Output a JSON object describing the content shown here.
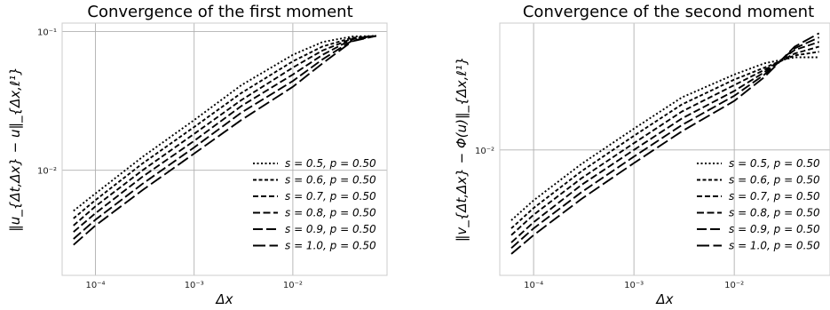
{
  "chart_data": [
    {
      "type": "line",
      "title": "Convergence of the first moment",
      "xlabel": "Δx",
      "ylabel": "‖u_{Δt,Δx} − u‖_{Δx,ℓ¹}",
      "xscale": "log",
      "yscale": "log",
      "xlim": [
        4.6e-05,
        0.09
      ],
      "ylim": [
        0.00175,
        0.115
      ],
      "xticks": [
        {
          "v": 0.0001,
          "label": "10⁻⁴"
        },
        {
          "v": 0.001,
          "label": "10⁻³"
        },
        {
          "v": 0.01,
          "label": "10⁻²"
        }
      ],
      "yticks": [
        {
          "v": 0.01,
          "label": "10⁻²"
        },
        {
          "v": 0.1,
          "label": "10⁻¹"
        }
      ],
      "grid": true,
      "legend_position": "lower-right",
      "x": [
        6e-05,
        0.0001,
        0.0003,
        0.001,
        0.003,
        0.01,
        0.02,
        0.04,
        0.07
      ],
      "series": [
        {
          "name": "s = 0.5, p = 0.50",
          "values": [
            0.0051,
            0.0068,
            0.0125,
            0.023,
            0.041,
            0.068,
            0.084,
            0.092,
            0.093
          ]
        },
        {
          "name": "s = 0.6, p = 0.50",
          "values": [
            0.0045,
            0.0061,
            0.0112,
            0.0205,
            0.036,
            0.061,
            0.078,
            0.09,
            0.093
          ]
        },
        {
          "name": "s = 0.7, p = 0.50",
          "values": [
            0.004,
            0.0055,
            0.01,
            0.0183,
            0.032,
            0.055,
            0.073,
            0.089,
            0.093
          ]
        },
        {
          "name": "s = 0.8, p = 0.50",
          "values": [
            0.0036,
            0.0049,
            0.009,
            0.0163,
            0.029,
            0.049,
            0.068,
            0.088,
            0.093
          ]
        },
        {
          "name": "s = 0.9, p = 0.50",
          "values": [
            0.0032,
            0.0044,
            0.008,
            0.0146,
            0.026,
            0.044,
            0.063,
            0.086,
            0.093
          ]
        },
        {
          "name": "s = 1.0, p = 0.50",
          "values": [
            0.0029,
            0.004,
            0.0072,
            0.0132,
            0.023,
            0.04,
            0.059,
            0.085,
            0.093
          ]
        }
      ]
    },
    {
      "type": "line",
      "title": "Convergence of the second moment",
      "xlabel": "Δx",
      "ylabel": "‖v_{Δt,Δx} − Φ(u)‖_{Δx,ℓ¹}",
      "xscale": "log",
      "yscale": "log",
      "xlim": [
        4.6e-05,
        0.09
      ],
      "ylim": [
        0.0017,
        0.06
      ],
      "xticks": [
        {
          "v": 0.0001,
          "label": "10⁻⁴"
        },
        {
          "v": 0.001,
          "label": "10⁻³"
        },
        {
          "v": 0.01,
          "label": "10⁻²"
        }
      ],
      "yticks": [
        {
          "v": 0.01,
          "label": "10⁻²"
        }
      ],
      "grid": true,
      "legend_position": "lower-right",
      "x": [
        6e-05,
        0.0001,
        0.0003,
        0.001,
        0.003,
        0.01,
        0.02,
        0.04,
        0.07
      ],
      "series": [
        {
          "name": "s = 0.5, p = 0.50",
          "values": [
            0.0037,
            0.0049,
            0.0082,
            0.0135,
            0.021,
            0.029,
            0.034,
            0.037,
            0.037
          ]
        },
        {
          "name": "s = 0.6, p = 0.50",
          "values": [
            0.0033,
            0.0044,
            0.0074,
            0.0122,
            0.019,
            0.027,
            0.032,
            0.038,
            0.04
          ]
        },
        {
          "name": "s = 0.7, p = 0.50",
          "values": [
            0.003,
            0.004,
            0.0067,
            0.011,
            0.0172,
            0.025,
            0.031,
            0.039,
            0.043
          ]
        },
        {
          "name": "s = 0.8, p = 0.50",
          "values": [
            0.0027,
            0.0036,
            0.0061,
            0.01,
            0.0156,
            0.023,
            0.03,
            0.041,
            0.046
          ]
        },
        {
          "name": "s = 0.9, p = 0.50",
          "values": [
            0.0025,
            0.0033,
            0.0055,
            0.0091,
            0.0142,
            0.0215,
            0.029,
            0.042,
            0.049
          ]
        },
        {
          "name": "s = 1.0, p = 0.50",
          "values": [
            0.0023,
            0.003,
            0.005,
            0.0083,
            0.013,
            0.02,
            0.028,
            0.043,
            0.052
          ]
        }
      ]
    }
  ]
}
